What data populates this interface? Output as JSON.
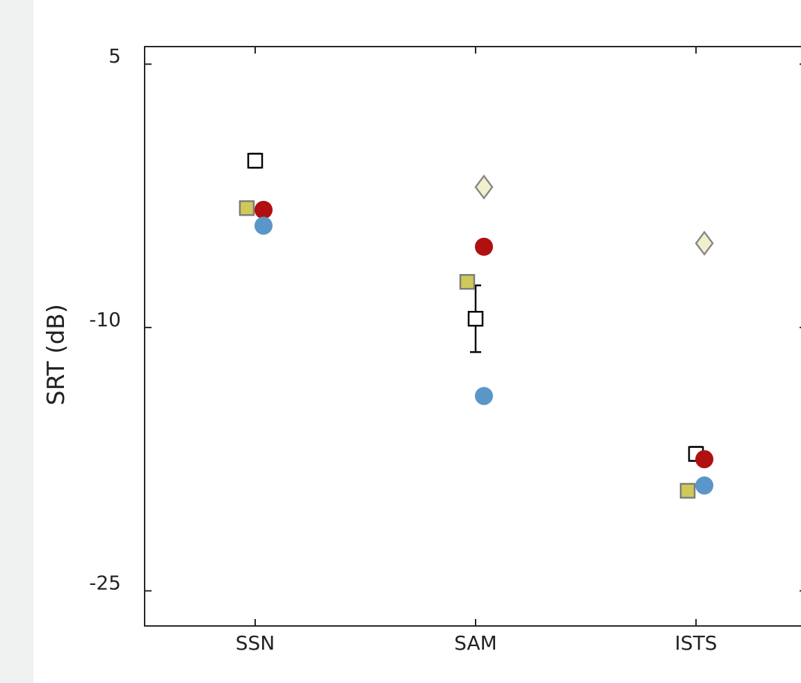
{
  "chart_data": {
    "type": "scatter",
    "title": "",
    "xlabel": "",
    "ylabel": "SRT (dB)",
    "categories": [
      "SSN",
      "SAM",
      "ISTS"
    ],
    "ylim": [
      -27,
      6
    ],
    "yticks": [
      5,
      -10,
      -25
    ],
    "ytick_labels": [
      "5",
      "-10",
      "-25"
    ],
    "grid": false,
    "legend": "none",
    "series": [
      {
        "marker": "square-open",
        "color": "#000000",
        "values": [
          -0.5,
          -9.5,
          -17.2
        ],
        "errors": [
          0.4,
          1.9,
          0.4
        ]
      },
      {
        "marker": "square",
        "color": "#cfc85a",
        "values": [
          -3.2,
          -7.4,
          -19.3
        ]
      },
      {
        "marker": "circle",
        "color": "#b01010",
        "values": [
          -3.3,
          -5.4,
          -17.5
        ]
      },
      {
        "marker": "circle",
        "color": "#5b96c8",
        "values": [
          -4.2,
          -13.9,
          -19.0
        ]
      },
      {
        "marker": "diamond",
        "color": "#f0f0cc",
        "values": [
          null,
          -2.0,
          -5.2
        ]
      }
    ]
  }
}
